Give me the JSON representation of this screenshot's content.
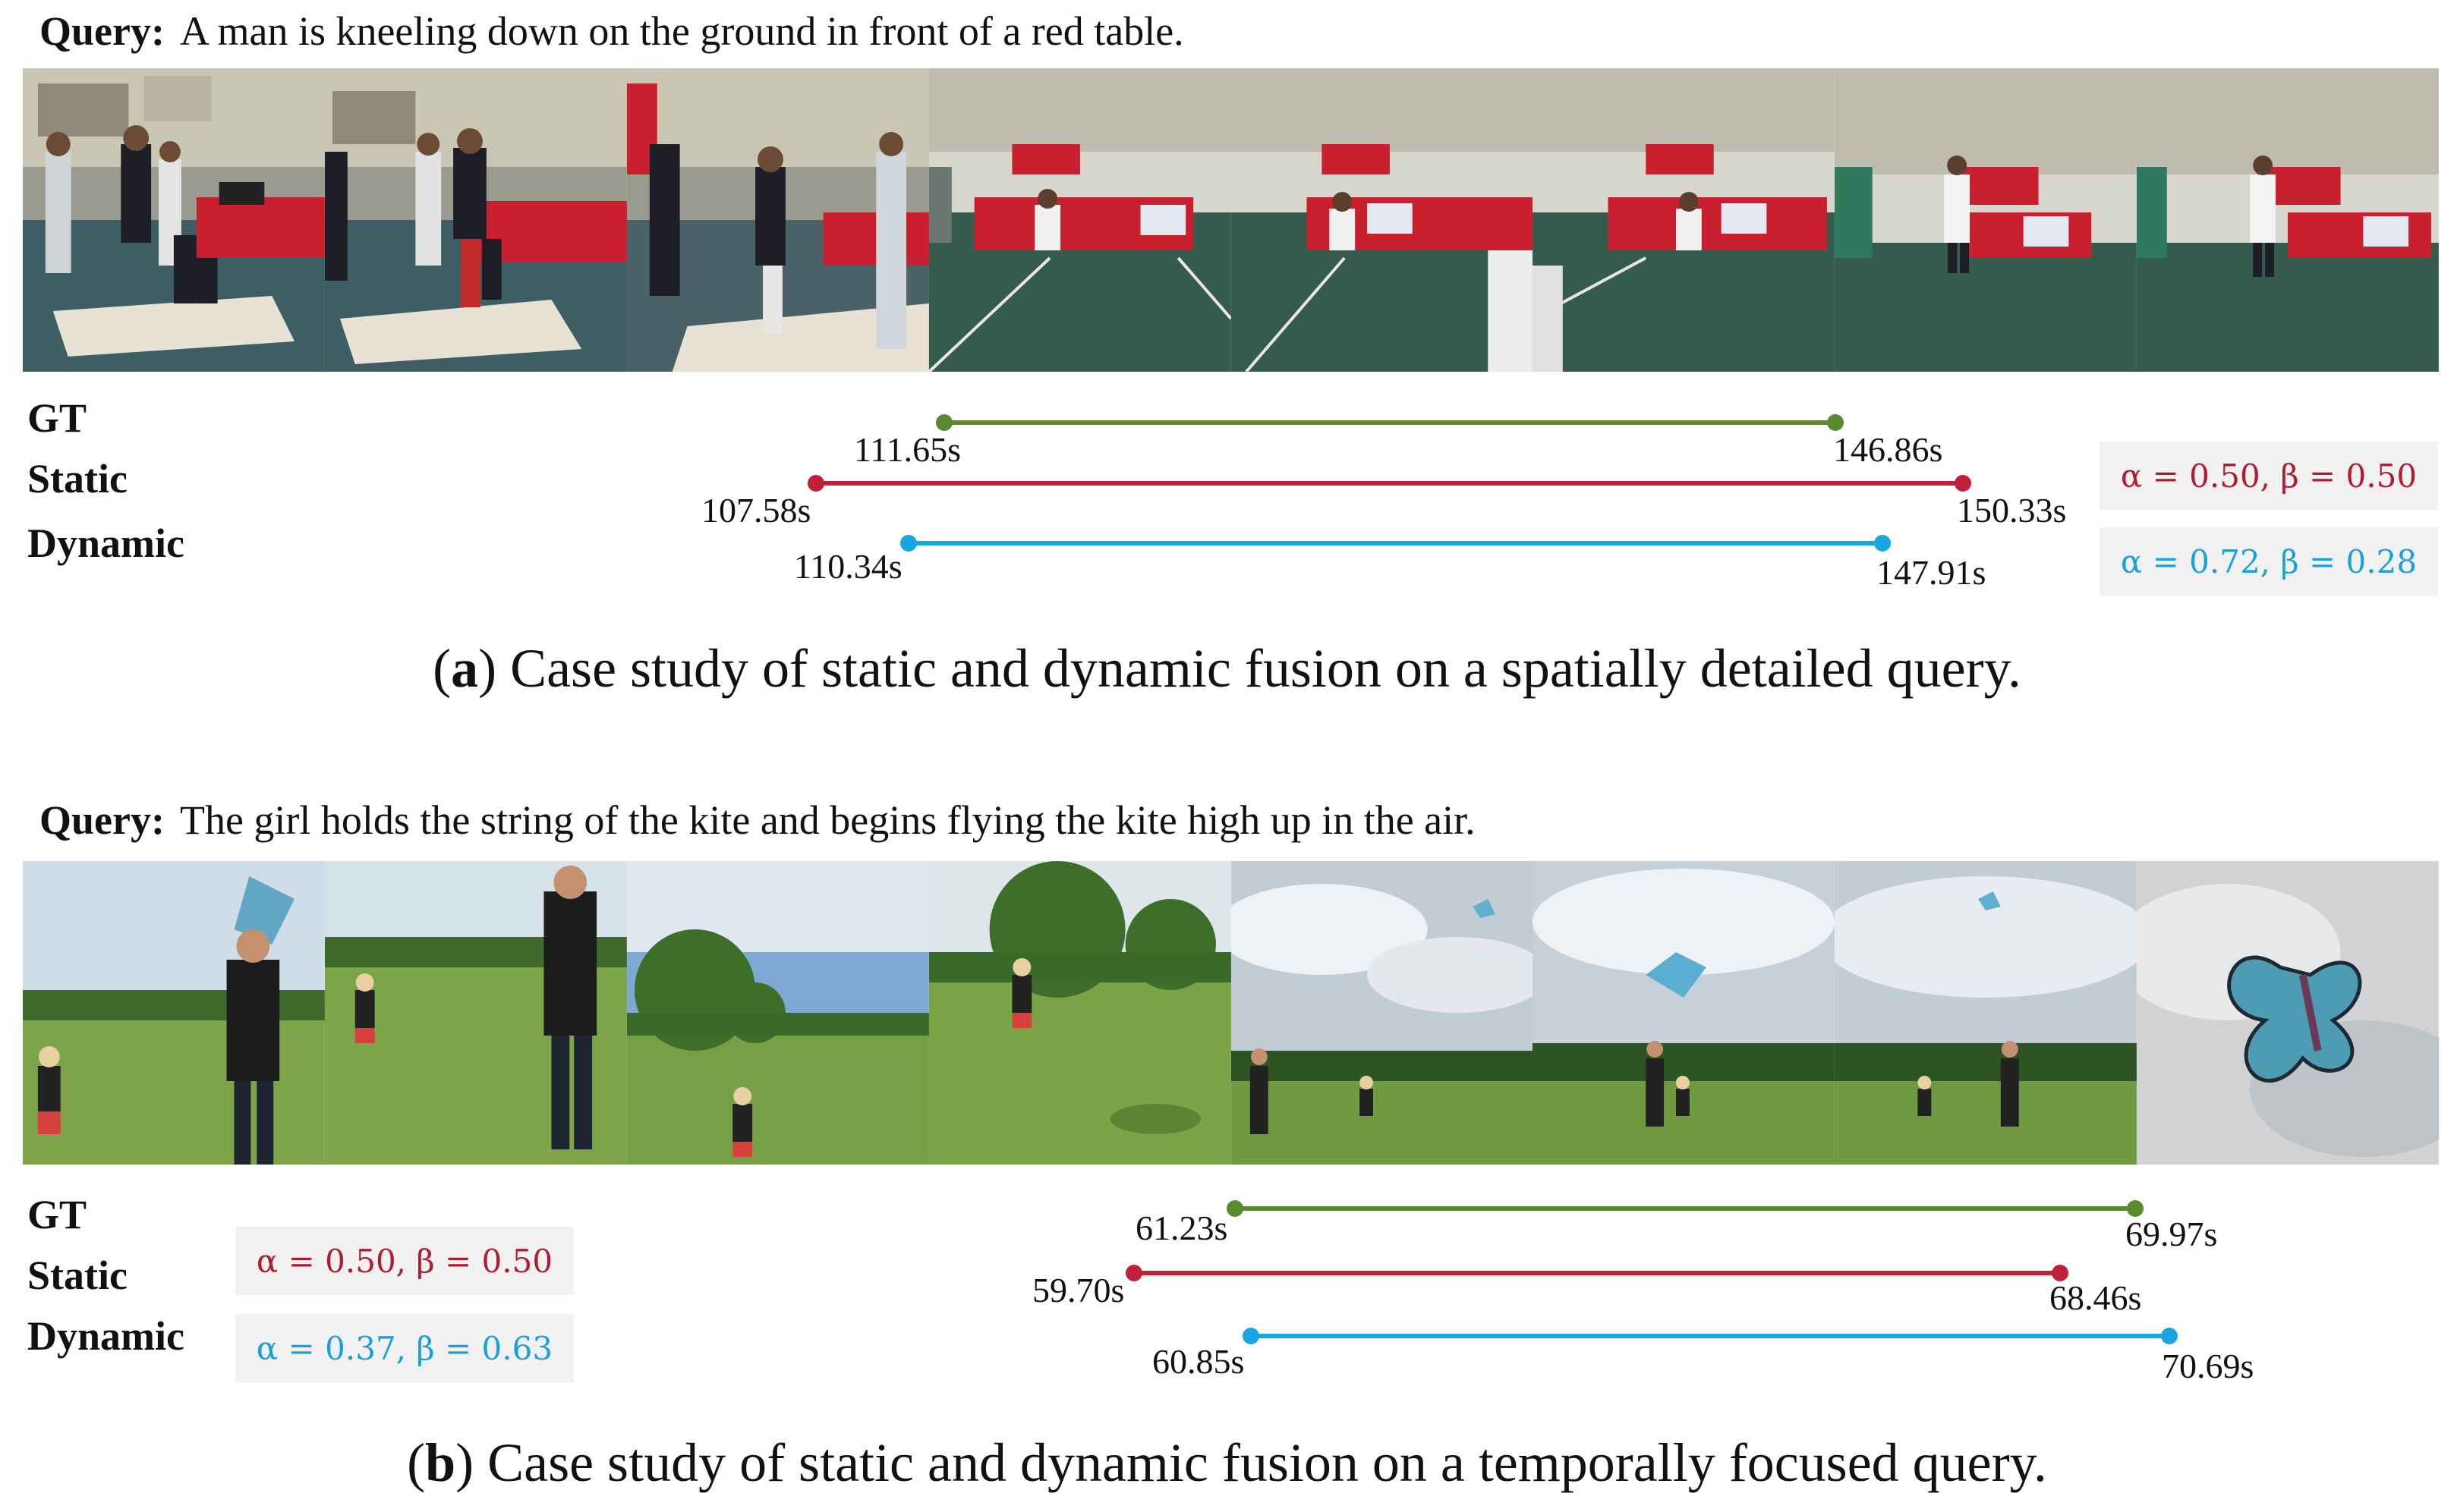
{
  "colors": {
    "gt": "#5a8a2e",
    "static": "#c0203a",
    "dynamic": "#18a6e0"
  },
  "row_labels": {
    "gt": "GT",
    "static": "Static",
    "dynamic": "Dynamic"
  },
  "panels": [
    {
      "id": "a",
      "query_label": "Query:",
      "query_text": "A man is kneeling down on the ground in front of a red table.",
      "frames": [
        "gym-frame-1",
        "gym-frame-2",
        "gym-frame-3",
        "gym-frame-4",
        "gym-frame-5",
        "gym-frame-6",
        "gym-frame-7",
        "gym-frame-8"
      ],
      "timeline": {
        "gt": {
          "start": "111.65s",
          "end": "146.86s"
        },
        "static": {
          "start": "107.58s",
          "end": "150.33s"
        },
        "dynamic": {
          "start": "110.34s",
          "end": "147.91s"
        }
      },
      "params": {
        "static": "α = 0.50, β = 0.50",
        "dynamic": "α = 0.72, β = 0.28"
      },
      "caption_letter": "a",
      "caption_text": "Case study of static and dynamic fusion on a spatially detailed query."
    },
    {
      "id": "b",
      "query_label": "Query:",
      "query_text": "The girl holds the string of the kite and begins flying the kite high up in the air.",
      "frames": [
        "park-frame-1",
        "park-frame-2",
        "park-frame-3",
        "park-frame-4",
        "park-frame-5",
        "park-frame-6",
        "park-frame-7",
        "park-frame-8"
      ],
      "timeline": {
        "gt": {
          "start": "61.23s",
          "end": "69.97s"
        },
        "static": {
          "start": "59.70s",
          "end": "68.46s"
        },
        "dynamic": {
          "start": "60.85s",
          "end": "70.69s"
        }
      },
      "params": {
        "static": "α = 0.50, β = 0.50",
        "dynamic": "α = 0.37, β = 0.63"
      },
      "caption_letter": "b",
      "caption_text": "Case study of static and dynamic fusion on a temporally focused query."
    }
  ]
}
